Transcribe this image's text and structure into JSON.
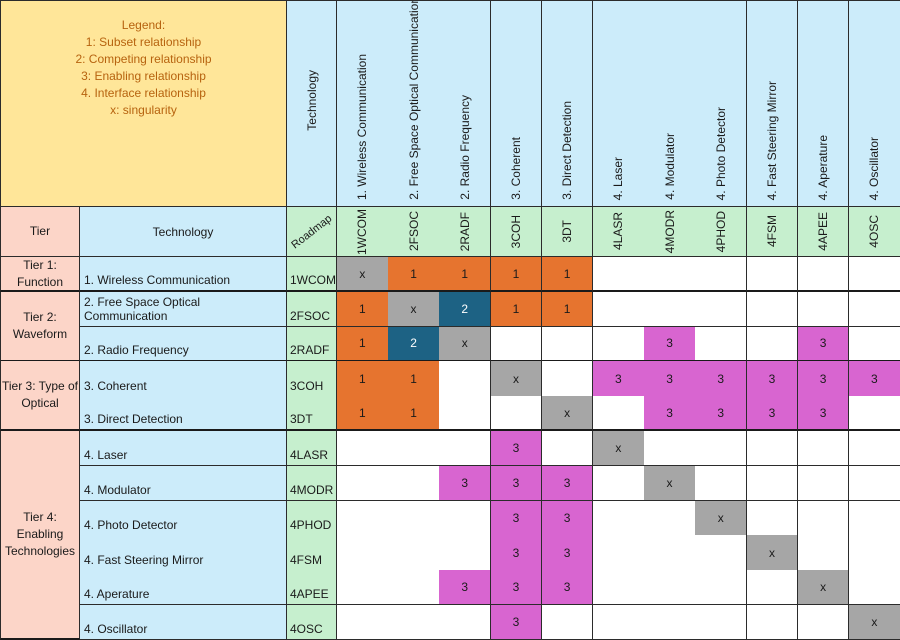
{
  "legend": {
    "title": "Legend:",
    "items": [
      "1: Subset relationship",
      "2: Competing relationship",
      "3: Enabling relationship",
      "4. Interface relationship",
      "x: singularity"
    ]
  },
  "header": {
    "technology_label": "Technology",
    "tier_label": "Tier",
    "roadmap_label": "Roadmap"
  },
  "columns": [
    {
      "name": "1. Wireless Communication",
      "code": "1WCOM"
    },
    {
      "name": "2. Free Space Optical Communication",
      "code": "2FSOC"
    },
    {
      "name": "2. Radio Frequency",
      "code": "2RADF"
    },
    {
      "name": "3. Coherent",
      "code": "3COH"
    },
    {
      "name": "3. Direct Detection",
      "code": "3DT"
    },
    {
      "name": "4. Laser",
      "code": "4LASR"
    },
    {
      "name": "4. Modulator",
      "code": "4MODR"
    },
    {
      "name": "4. Photo Detector",
      "code": "4PHOD"
    },
    {
      "name": "4. Fast Steering Mirror",
      "code": "4FSM"
    },
    {
      "name": "4. Aperature",
      "code": "4APEE"
    },
    {
      "name": "4. Oscillator",
      "code": "4OSC"
    }
  ],
  "tiers": [
    {
      "label": "Tier 1:\nFunction",
      "rows": 1
    },
    {
      "label": "Tier 2:\nWaveform",
      "rows": 2
    },
    {
      "label": "Tier 3: Type of\nOptical",
      "rows": 2
    },
    {
      "label": "Tier 4:\nEnabling\nTechnologies",
      "rows": 6
    }
  ],
  "rows": [
    {
      "name": "1. Wireless Communication",
      "code": "1WCOM",
      "cells": [
        "x",
        "1",
        "1",
        "1",
        "1",
        "",
        "",
        "",
        "",
        "",
        ""
      ]
    },
    {
      "name": "2. Free Space Optical Communication",
      "code": "2FSOC",
      "cells": [
        "1",
        "x",
        "2",
        "1",
        "1",
        "",
        "",
        "",
        "",
        "",
        ""
      ]
    },
    {
      "name": "2. Radio Frequency",
      "code": "2RADF",
      "cells": [
        "1",
        "2",
        "x",
        "",
        "",
        "",
        "3",
        "",
        "",
        "3",
        ""
      ]
    },
    {
      "name": "3. Coherent",
      "code": "3COH",
      "cells": [
        "1",
        "1",
        "",
        "x",
        "",
        "3",
        "3",
        "3",
        "3",
        "3",
        "3"
      ]
    },
    {
      "name": "3. Direct Detection",
      "code": "3DT",
      "cells": [
        "1",
        "1",
        "",
        "",
        "x",
        "",
        "3",
        "3",
        "3",
        "3",
        ""
      ]
    },
    {
      "name": "4. Laser",
      "code": "4LASR",
      "cells": [
        "",
        "",
        "",
        "3",
        "",
        "x",
        "",
        "",
        "",
        "",
        ""
      ]
    },
    {
      "name": "4. Modulator",
      "code": "4MODR",
      "cells": [
        "",
        "",
        "3",
        "3",
        "3",
        "",
        "x",
        "",
        "",
        "",
        ""
      ]
    },
    {
      "name": "4. Photo Detector",
      "code": "4PHOD",
      "cells": [
        "",
        "",
        "",
        "3",
        "3",
        "",
        "",
        "x",
        "",
        "",
        ""
      ]
    },
    {
      "name": "4. Fast Steering Mirror",
      "code": "4FSM",
      "cells": [
        "",
        "",
        "",
        "3",
        "3",
        "",
        "",
        "",
        "x",
        "",
        ""
      ]
    },
    {
      "name": "4. Aperature",
      "code": "4APEE",
      "cells": [
        "",
        "",
        "3",
        "3",
        "3",
        "",
        "",
        "",
        "",
        "x",
        ""
      ]
    },
    {
      "name": "4. Oscillator",
      "code": "4OSC",
      "cells": [
        "",
        "",
        "",
        "3",
        "",
        "",
        "",
        "",
        "",
        "",
        "x"
      ]
    }
  ],
  "colors": {
    "x": "#a6a6a6",
    "1": "#e6742f",
    "2": "#1d6284",
    "3": "#d865d0",
    "empty": "#ffffff"
  }
}
